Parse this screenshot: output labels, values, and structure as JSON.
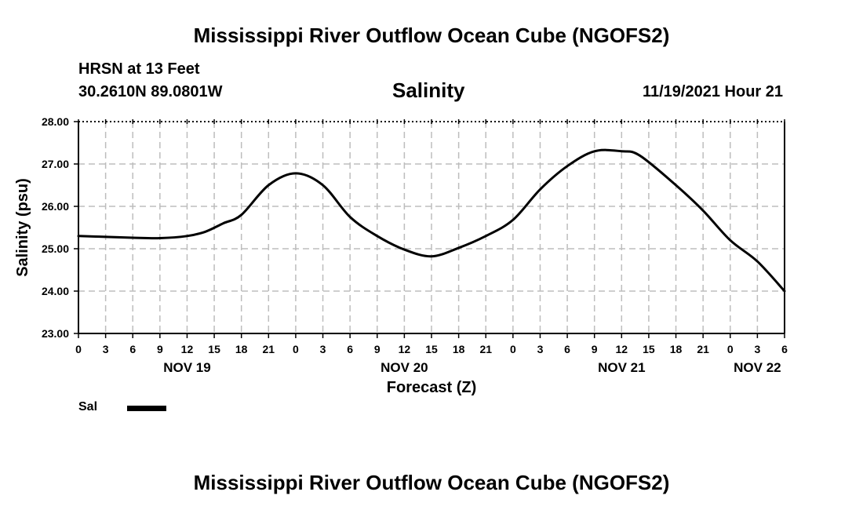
{
  "page": {
    "title_top": "Mississippi River Outflow Ocean Cube (NGOFS2)",
    "title_bottom": "Mississippi River Outflow Ocean Cube (NGOFS2)",
    "station": "HRSN at 13 Feet",
    "coords": "30.2610N  89.0801W",
    "datetime": "11/19/2021 Hour 21"
  },
  "chart_data": {
    "type": "line",
    "title": "Salinity",
    "xlabel": "Forecast (Z)",
    "ylabel": "Salinity (psu)",
    "ylim": [
      23,
      28
    ],
    "xlim": [
      0,
      78
    ],
    "x_unit": "hours since NOV 19 00Z",
    "grid": true,
    "legend_position": "bottom-left",
    "ytick_labels": [
      "23.00",
      "24.00",
      "25.00",
      "26.00",
      "27.00",
      "28.00"
    ],
    "ytick_values": [
      23,
      24,
      25,
      26,
      27,
      28
    ],
    "xtick_labels": [
      "0",
      "3",
      "6",
      "9",
      "12",
      "15",
      "18",
      "21",
      "0",
      "3",
      "6",
      "9",
      "12",
      "15",
      "18",
      "21",
      "0",
      "3",
      "6",
      "9",
      "12",
      "15",
      "18",
      "21",
      "0",
      "3",
      "6"
    ],
    "day_labels": [
      {
        "label": "NOV 19",
        "at": 12
      },
      {
        "label": "NOV 20",
        "at": 36
      },
      {
        "label": "NOV 21",
        "at": 60
      },
      {
        "label": "NOV 22",
        "at": 75
      }
    ],
    "series": [
      {
        "name": "Sal",
        "color": "#000000",
        "x": [
          0,
          3,
          6,
          9,
          12,
          14,
          16,
          18,
          21,
          24,
          27,
          30,
          33,
          36,
          39,
          42,
          45,
          48,
          51,
          54,
          57,
          60,
          62,
          66,
          69,
          72,
          75,
          78
        ],
        "values": [
          25.3,
          25.28,
          25.26,
          25.25,
          25.3,
          25.4,
          25.6,
          25.8,
          26.5,
          26.78,
          26.5,
          25.75,
          25.3,
          24.98,
          24.82,
          25.02,
          25.3,
          25.68,
          26.4,
          26.95,
          27.3,
          27.3,
          27.2,
          26.5,
          25.9,
          25.2,
          24.7,
          24.0
        ]
      }
    ]
  }
}
